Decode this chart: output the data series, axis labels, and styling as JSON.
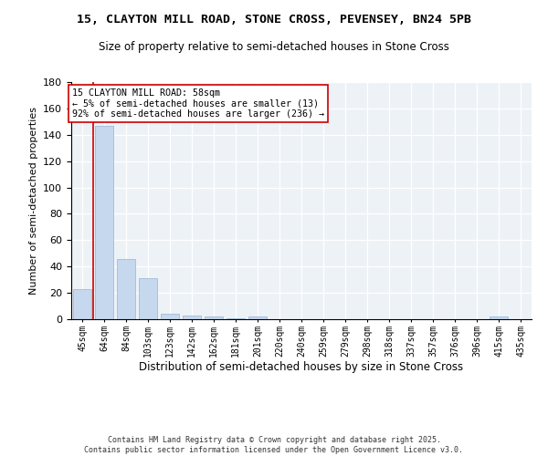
{
  "title_line1": "15, CLAYTON MILL ROAD, STONE CROSS, PEVENSEY, BN24 5PB",
  "title_line2": "Size of property relative to semi-detached houses in Stone Cross",
  "xlabel": "Distribution of semi-detached houses by size in Stone Cross",
  "ylabel": "Number of semi-detached properties",
  "annotation_line1": "15 CLAYTON MILL ROAD: 58sqm",
  "annotation_line2": "← 5% of semi-detached houses are smaller (13)",
  "annotation_line3": "92% of semi-detached houses are larger (236) →",
  "categories": [
    "45sqm",
    "64sqm",
    "84sqm",
    "103sqm",
    "123sqm",
    "142sqm",
    "162sqm",
    "181sqm",
    "201sqm",
    "220sqm",
    "240sqm",
    "259sqm",
    "279sqm",
    "298sqm",
    "318sqm",
    "337sqm",
    "357sqm",
    "376sqm",
    "396sqm",
    "415sqm",
    "435sqm"
  ],
  "values": [
    23,
    147,
    46,
    31,
    4,
    3,
    2,
    1,
    2,
    0,
    0,
    0,
    0,
    0,
    0,
    0,
    0,
    0,
    0,
    2,
    0
  ],
  "bar_color": "#c5d8ed",
  "bar_edge_color": "#a0bcd8",
  "vline_color": "#cc0000",
  "vline_x": 0.5,
  "ylim": [
    0,
    180
  ],
  "yticks": [
    0,
    20,
    40,
    60,
    80,
    100,
    120,
    140,
    160,
    180
  ],
  "background_color": "#edf2f7",
  "grid_color": "#ffffff",
  "footer_line1": "Contains HM Land Registry data © Crown copyright and database right 2025.",
  "footer_line2": "Contains public sector information licensed under the Open Government Licence v3.0."
}
